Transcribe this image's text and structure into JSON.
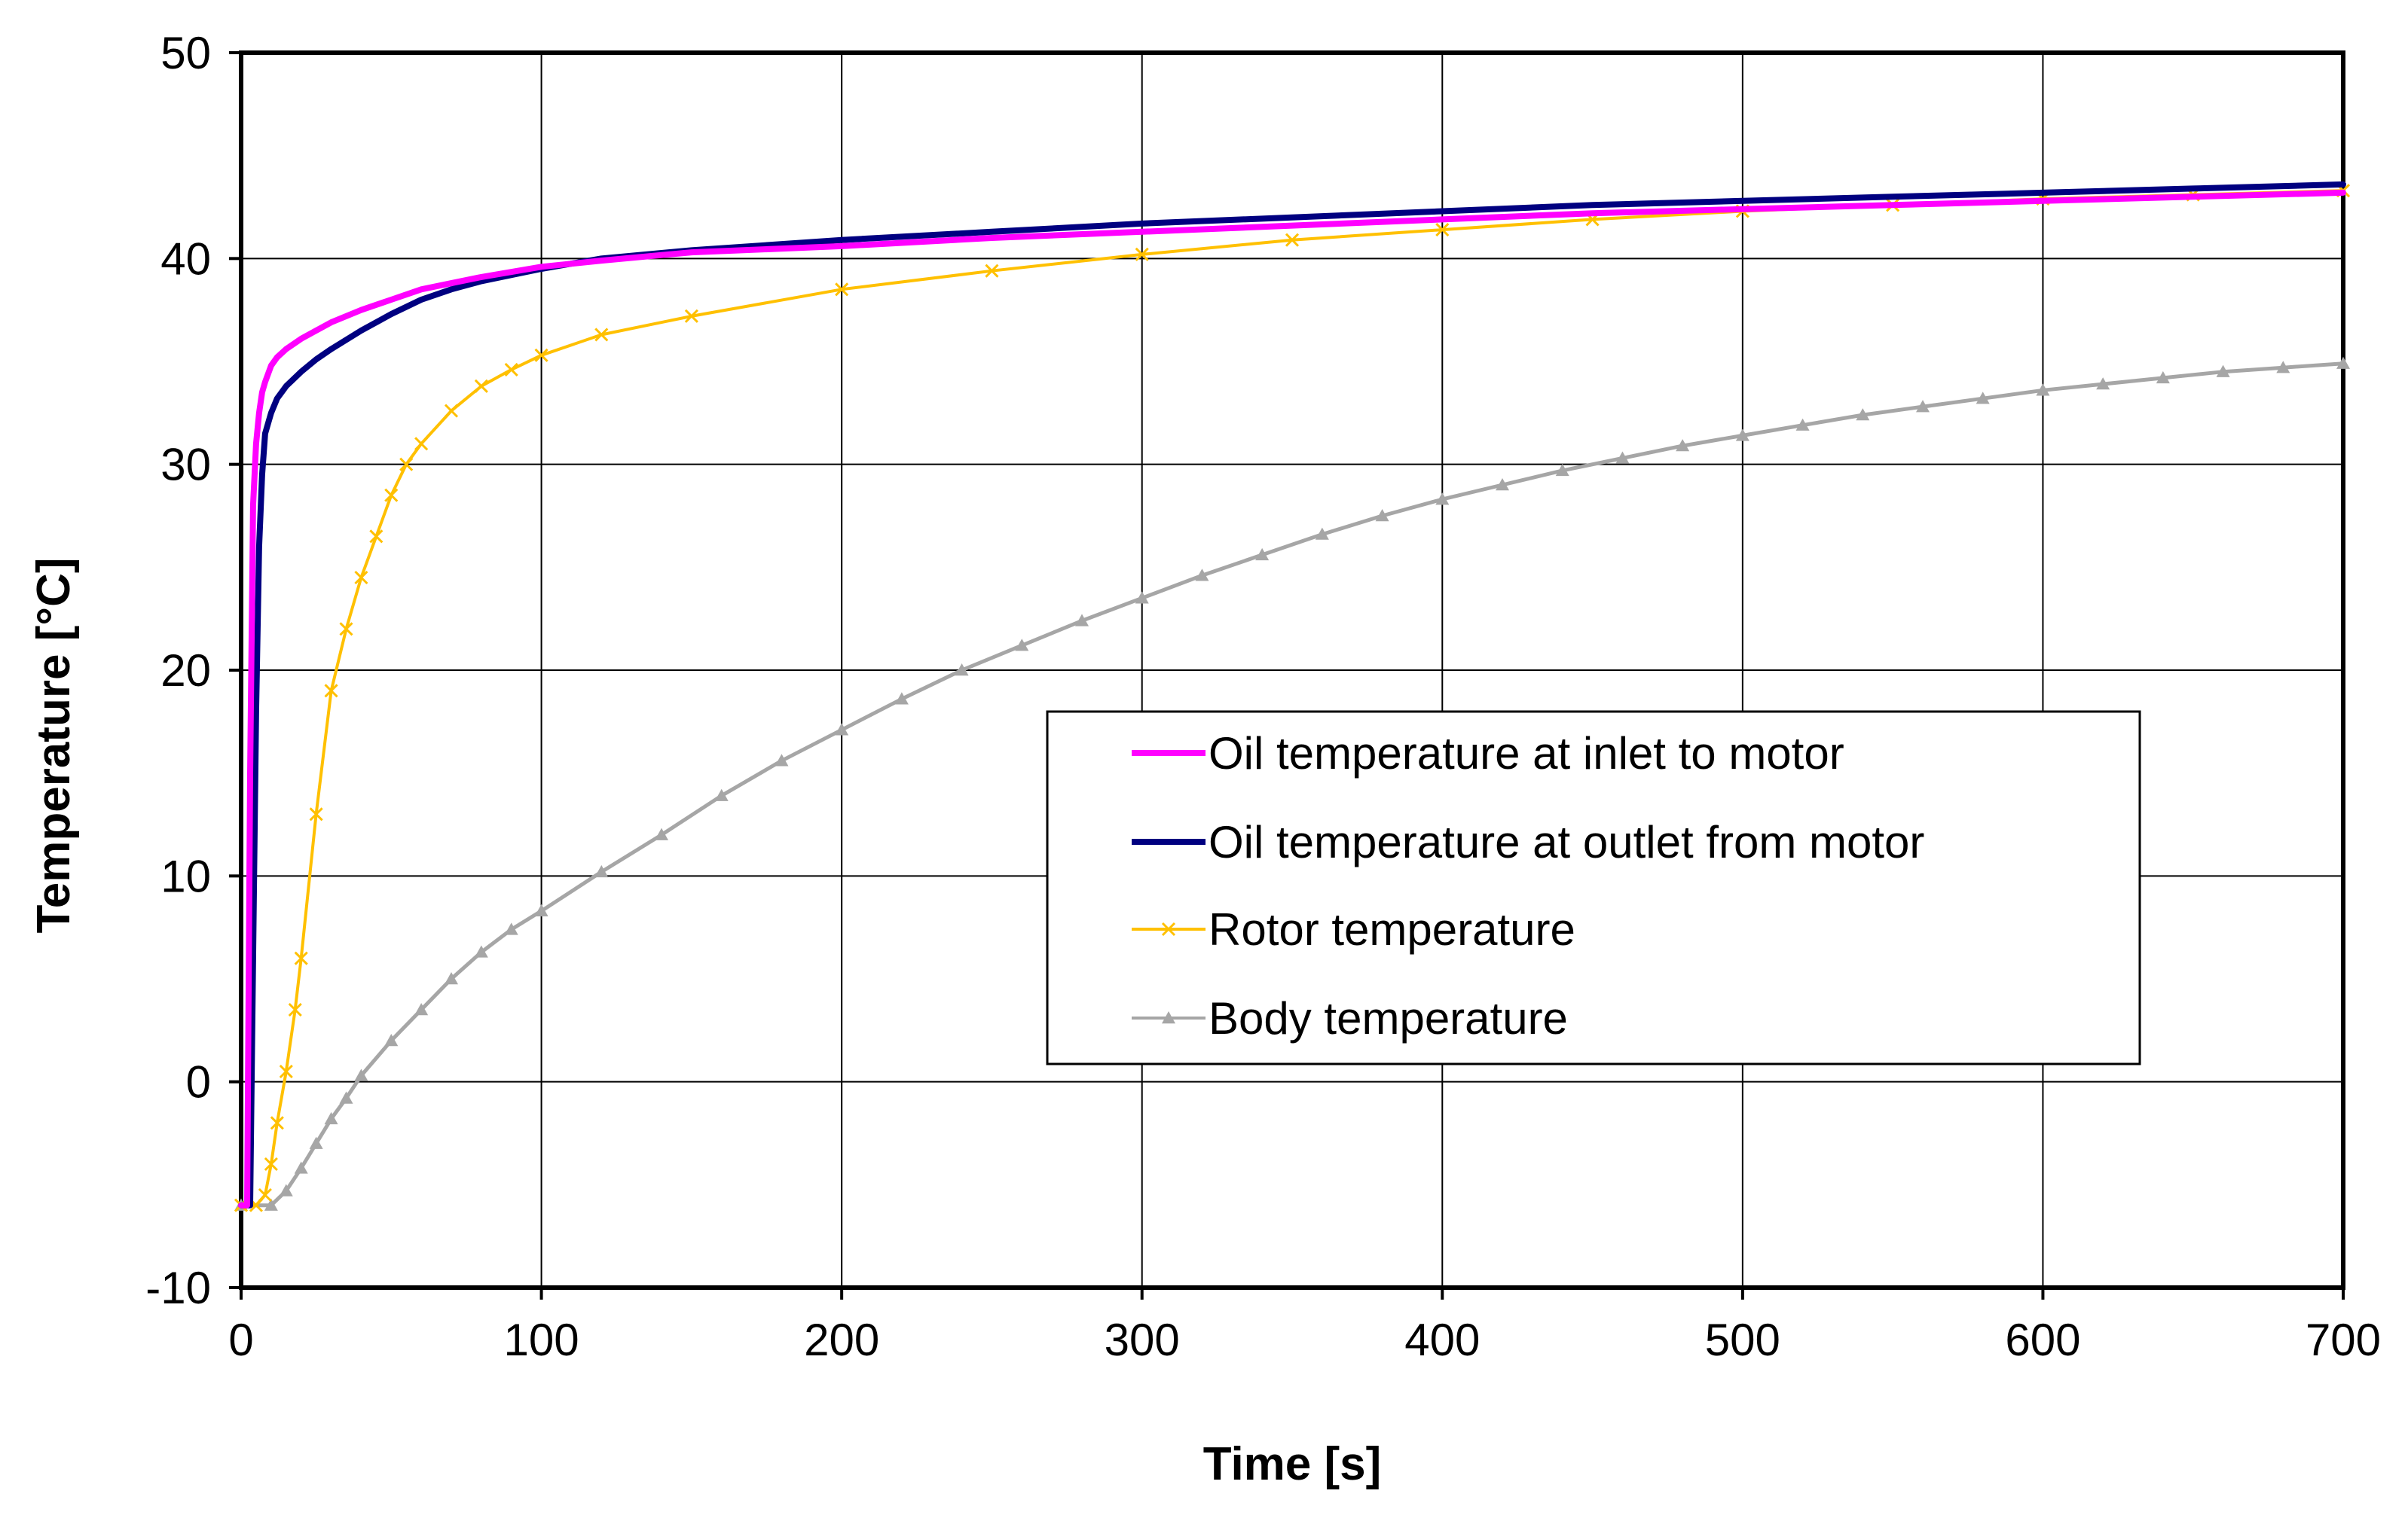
{
  "chart_data": {
    "type": "line",
    "title": "",
    "xlabel": "Time [s]",
    "ylabel": "Temperature [°C]",
    "xlim": [
      0,
      700
    ],
    "ylim": [
      -10,
      50
    ],
    "xticks": [
      "0",
      "100",
      "200",
      "300",
      "400",
      "500",
      "600",
      "700"
    ],
    "yticks": [
      "-10",
      "0",
      "10",
      "20",
      "30",
      "40",
      "50"
    ],
    "grid": true,
    "legend_position": "center-right",
    "series": [
      {
        "name": "Oil temperature at inlet to motor",
        "color": "#ff00ff",
        "marker": "none",
        "x": [
          0,
          2,
          3,
          4,
          5,
          6,
          7,
          8,
          10,
          12,
          15,
          20,
          25,
          30,
          40,
          50,
          60,
          70,
          80,
          100,
          120,
          150,
          200,
          250,
          300,
          350,
          400,
          450,
          500,
          550,
          600,
          650,
          700
        ],
        "y": [
          -6,
          -6,
          15,
          28,
          31,
          32.5,
          33.5,
          34,
          34.8,
          35.2,
          35.6,
          36.1,
          36.5,
          36.9,
          37.5,
          38,
          38.5,
          38.8,
          39.1,
          39.6,
          39.9,
          40.3,
          40.6,
          41,
          41.3,
          41.6,
          41.9,
          42.2,
          42.4,
          42.6,
          42.8,
          43,
          43.2
        ]
      },
      {
        "name": "Oil temperature at outlet from motor",
        "color": "#000080",
        "marker": "none",
        "x": [
          0,
          3,
          4,
          5,
          6,
          7,
          8,
          10,
          12,
          15,
          20,
          25,
          30,
          40,
          50,
          60,
          70,
          80,
          100,
          120,
          150,
          200,
          250,
          300,
          350,
          400,
          450,
          500,
          550,
          600,
          650,
          700
        ],
        "y": [
          -6,
          -6,
          6,
          18,
          26,
          29.5,
          31.5,
          32.5,
          33.2,
          33.8,
          34.5,
          35.1,
          35.6,
          36.5,
          37.3,
          38,
          38.5,
          38.9,
          39.5,
          40,
          40.4,
          40.9,
          41.3,
          41.7,
          42,
          42.3,
          42.6,
          42.8,
          43,
          43.2,
          43.4,
          43.6
        ]
      },
      {
        "name": "Rotor temperature",
        "color": "#ffc000",
        "marker": "x",
        "x": [
          0,
          5,
          8,
          10,
          12,
          15,
          18,
          20,
          25,
          30,
          35,
          40,
          45,
          50,
          55,
          60,
          70,
          80,
          90,
          100,
          120,
          150,
          200,
          250,
          300,
          350,
          400,
          450,
          500,
          550,
          600,
          650,
          700
        ],
        "y": [
          -6,
          -6,
          -5.5,
          -4,
          -2,
          0.5,
          3.5,
          6,
          13,
          19,
          22,
          24.5,
          26.5,
          28.5,
          30,
          31,
          32.6,
          33.8,
          34.6,
          35.3,
          36.3,
          37.2,
          38.5,
          39.4,
          40.2,
          40.9,
          41.4,
          41.9,
          42.3,
          42.6,
          42.9,
          43.1,
          43.3
        ]
      },
      {
        "name": "Body temperature",
        "color": "#a6a6a6",
        "marker": "triangle",
        "x": [
          0,
          10,
          15,
          20,
          25,
          30,
          35,
          40,
          50,
          60,
          70,
          80,
          90,
          100,
          120,
          140,
          160,
          180,
          200,
          220,
          240,
          260,
          280,
          300,
          320,
          340,
          360,
          380,
          400,
          420,
          440,
          460,
          480,
          500,
          520,
          540,
          560,
          580,
          600,
          620,
          640,
          660,
          680,
          700
        ],
        "y": [
          -6,
          -6,
          -5.3,
          -4.2,
          -3,
          -1.8,
          -0.8,
          0.3,
          2,
          3.5,
          5,
          6.3,
          7.4,
          8.3,
          10.2,
          12,
          13.9,
          15.6,
          17.1,
          18.6,
          20,
          21.2,
          22.4,
          23.5,
          24.6,
          25.6,
          26.6,
          27.5,
          28.3,
          29,
          29.7,
          30.3,
          30.9,
          31.4,
          31.9,
          32.4,
          32.8,
          33.2,
          33.6,
          33.9,
          34.2,
          34.5,
          34.7,
          34.9
        ]
      }
    ]
  }
}
